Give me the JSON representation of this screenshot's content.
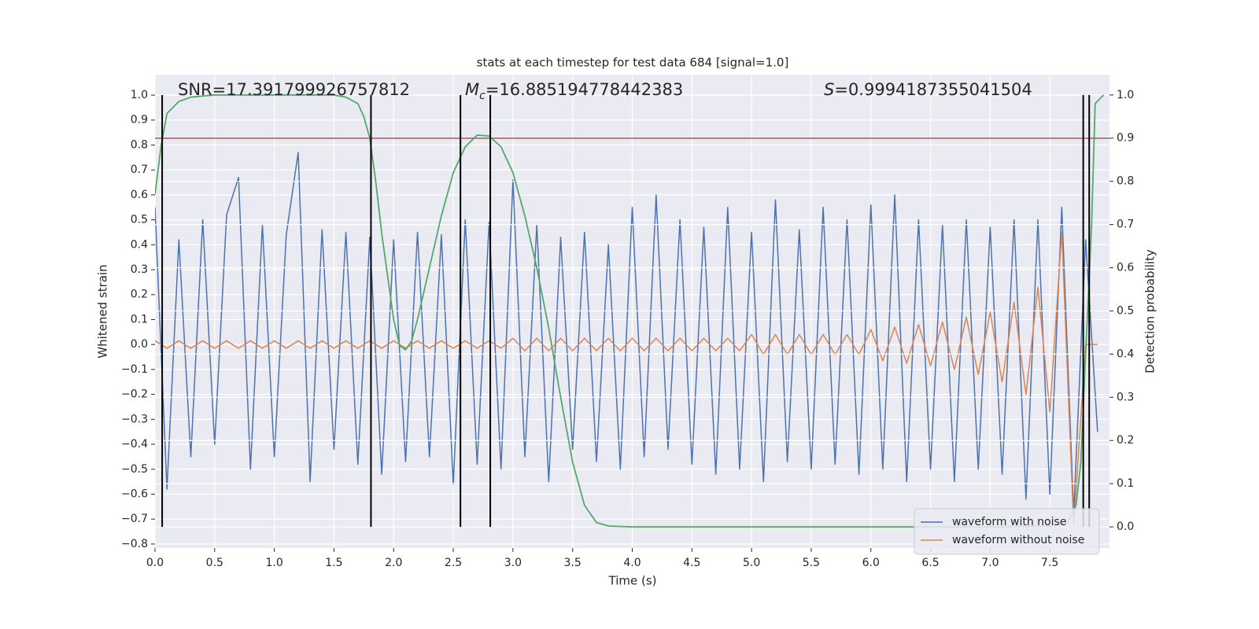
{
  "chart_data": {
    "type": "line",
    "title": "stats at each timestep for test data 684 [signal=1.0]",
    "xlabel": "Time (s)",
    "ylabel": "Whitened strain",
    "y2label": "Detection probability",
    "annotations": [
      {
        "text": "SNR=17.391799926757812"
      },
      {
        "symbol": "M",
        "subscript": "c",
        "text": "=16.885194778442383"
      },
      {
        "symbol": "S",
        "text": "=0.9994187355041504"
      }
    ],
    "xlim": [
      0,
      8.0
    ],
    "ylim": [
      -0.816,
      1.082
    ],
    "y2lim": [
      -0.049,
      1.047
    ],
    "xticks": [
      {
        "value": 0,
        "label": "0.0"
      },
      {
        "value": 0.5,
        "label": "0.5"
      },
      {
        "value": 1,
        "label": "1.0"
      },
      {
        "value": 1.5,
        "label": "1.5"
      },
      {
        "value": 2,
        "label": "2.0"
      },
      {
        "value": 2.5,
        "label": "2.5"
      },
      {
        "value": 3,
        "label": "3.0"
      },
      {
        "value": 3.5,
        "label": "3.5"
      },
      {
        "value": 4,
        "label": "4.0"
      },
      {
        "value": 4.5,
        "label": "4.5"
      },
      {
        "value": 5,
        "label": "5.0"
      },
      {
        "value": 5.5,
        "label": "5.5"
      },
      {
        "value": 6,
        "label": "6.0"
      },
      {
        "value": 6.5,
        "label": "6.5"
      },
      {
        "value": 7,
        "label": "7.0"
      },
      {
        "value": 7.5,
        "label": "7.5"
      }
    ],
    "yticks": [
      {
        "value": -0.8,
        "label": "−0.8"
      },
      {
        "value": -0.7,
        "label": "−0.7"
      },
      {
        "value": -0.6,
        "label": "−0.6"
      },
      {
        "value": -0.5,
        "label": "−0.5"
      },
      {
        "value": -0.4,
        "label": "−0.4"
      },
      {
        "value": -0.3,
        "label": "−0.3"
      },
      {
        "value": -0.2,
        "label": "−0.2"
      },
      {
        "value": -0.1,
        "label": "−0.1"
      },
      {
        "value": 0,
        "label": "0.0"
      },
      {
        "value": 0.1,
        "label": "0.1"
      },
      {
        "value": 0.2,
        "label": "0.2"
      },
      {
        "value": 0.3,
        "label": "0.3"
      },
      {
        "value": 0.4,
        "label": "0.4"
      },
      {
        "value": 0.5,
        "label": "0.5"
      },
      {
        "value": 0.6,
        "label": "0.6"
      },
      {
        "value": 0.7,
        "label": "0.7"
      },
      {
        "value": 0.8,
        "label": "0.8"
      },
      {
        "value": 0.9,
        "label": "0.9"
      },
      {
        "value": 1,
        "label": "1.0"
      }
    ],
    "y2ticks": [
      {
        "value": 0,
        "label": "0.0"
      },
      {
        "value": 0.1,
        "label": "0.1"
      },
      {
        "value": 0.2,
        "label": "0.2"
      },
      {
        "value": 0.3,
        "label": "0.3"
      },
      {
        "value": 0.4,
        "label": "0.4"
      },
      {
        "value": 0.5,
        "label": "0.5"
      },
      {
        "value": 0.6,
        "label": "0.6"
      },
      {
        "value": 0.7,
        "label": "0.7"
      },
      {
        "value": 0.8,
        "label": "0.8"
      },
      {
        "value": 0.9,
        "label": "0.9"
      },
      {
        "value": 1,
        "label": "1.0"
      }
    ],
    "grid": true,
    "legend": "lower right",
    "x": [
      0.0,
      0.1,
      0.2,
      0.3,
      0.4,
      0.5,
      0.6,
      0.7,
      0.8,
      0.9,
      1.0,
      1.1,
      1.2,
      1.3,
      1.4,
      1.5,
      1.6,
      1.7,
      1.8,
      1.9,
      2.0,
      2.1,
      2.2,
      2.3,
      2.4,
      2.5,
      2.6,
      2.7,
      2.8,
      2.9,
      3.0,
      3.1,
      3.2,
      3.3,
      3.4,
      3.5,
      3.6,
      3.7,
      3.8,
      3.9,
      4.0,
      4.1,
      4.2,
      4.3,
      4.4,
      4.5,
      4.6,
      4.7,
      4.8,
      4.9,
      5.0,
      5.1,
      5.2,
      5.3,
      5.4,
      5.5,
      5.6,
      5.7,
      5.8,
      5.9,
      6.0,
      6.1,
      6.2,
      6.3,
      6.4,
      6.5,
      6.6,
      6.7,
      6.8,
      6.9,
      7.0,
      7.1,
      7.2,
      7.3,
      7.4,
      7.5,
      7.6,
      7.7,
      7.8,
      7.9
    ],
    "series": [
      {
        "name": "waveform with noise",
        "color": "#4c72b0",
        "values": [
          0.55,
          -0.58,
          0.42,
          -0.45,
          0.5,
          -0.4,
          0.52,
          0.67,
          -0.5,
          0.48,
          -0.45,
          0.44,
          0.77,
          -0.55,
          0.46,
          -0.42,
          0.45,
          -0.48,
          0.43,
          -0.52,
          0.42,
          -0.47,
          0.45,
          -0.45,
          0.44,
          -0.56,
          0.5,
          -0.48,
          0.49,
          -0.5,
          0.66,
          -0.45,
          0.48,
          -0.55,
          0.43,
          -0.42,
          0.45,
          -0.47,
          0.4,
          -0.5,
          0.55,
          -0.45,
          0.6,
          -0.42,
          0.5,
          -0.48,
          0.47,
          -0.52,
          0.55,
          -0.5,
          0.45,
          -0.55,
          0.58,
          -0.47,
          0.46,
          -0.5,
          0.55,
          -0.48,
          0.5,
          -0.52,
          0.56,
          -0.5,
          0.6,
          -0.55,
          0.5,
          -0.5,
          0.48,
          -0.55,
          0.5,
          -0.5,
          0.47,
          -0.52,
          0.5,
          -0.62,
          0.5,
          -0.6,
          0.55,
          -0.68,
          0.42,
          -0.35
        ]
      },
      {
        "name": "waveform without noise",
        "color": "#dd8452",
        "values": [
          0.015,
          -0.015,
          0.015,
          -0.015,
          0.015,
          -0.015,
          0.015,
          -0.015,
          0.015,
          -0.015,
          0.015,
          -0.015,
          0.015,
          -0.015,
          0.015,
          -0.015,
          0.015,
          -0.015,
          0.015,
          -0.015,
          0.015,
          -0.015,
          0.015,
          -0.015,
          0.015,
          -0.015,
          0.015,
          -0.015,
          0.015,
          -0.015,
          0.025,
          -0.025,
          0.025,
          -0.025,
          0.025,
          -0.025,
          0.025,
          -0.025,
          0.025,
          -0.025,
          0.025,
          -0.025,
          0.025,
          -0.025,
          0.025,
          -0.025,
          0.025,
          -0.025,
          0.025,
          -0.025,
          0.04,
          -0.04,
          0.04,
          -0.04,
          0.04,
          -0.04,
          0.04,
          -0.04,
          0.04,
          -0.04,
          0.06,
          -0.065,
          0.07,
          -0.075,
          0.08,
          -0.085,
          0.09,
          -0.1,
          0.11,
          -0.12,
          0.13,
          -0.15,
          0.17,
          -0.2,
          0.23,
          -0.27,
          0.45,
          -0.73,
          0,
          0
        ]
      },
      {
        "color": "#55a868",
        "axis": "y2",
        "x": [
          0.0,
          0.05,
          0.1,
          0.2,
          0.3,
          0.5,
          1.0,
          1.5,
          1.6,
          1.7,
          1.75,
          1.8,
          1.85,
          1.9,
          2.0,
          2.05,
          2.1,
          2.15,
          2.2,
          2.3,
          2.4,
          2.5,
          2.6,
          2.7,
          2.8,
          2.9,
          3.0,
          3.1,
          3.2,
          3.3,
          3.4,
          3.5,
          3.6,
          3.7,
          3.8,
          4.0,
          5.0,
          6.0,
          7.0,
          7.5,
          7.65,
          7.72,
          7.76,
          7.8,
          7.85,
          7.88,
          7.95
        ],
        "values": [
          0.77,
          0.88,
          0.957,
          0.985,
          0.995,
          1.0,
          1.0,
          1.0,
          0.995,
          0.98,
          0.95,
          0.9,
          0.8,
          0.68,
          0.48,
          0.42,
          0.41,
          0.43,
          0.48,
          0.6,
          0.72,
          0.82,
          0.88,
          0.907,
          0.905,
          0.88,
          0.82,
          0.72,
          0.6,
          0.46,
          0.3,
          0.15,
          0.05,
          0.01,
          0.002,
          0.0,
          0.0,
          0.0,
          0.0,
          0.002,
          0.01,
          0.05,
          0.15,
          0.4,
          0.7,
          0.98,
          1.0
        ]
      }
    ],
    "threshold": {
      "value": 0.9,
      "axis": "y2",
      "color": "#c44e52"
    },
    "markers": {
      "x": [
        0.06,
        1.81,
        2.56,
        2.81,
        7.78,
        7.83
      ],
      "color": "#000000"
    }
  }
}
